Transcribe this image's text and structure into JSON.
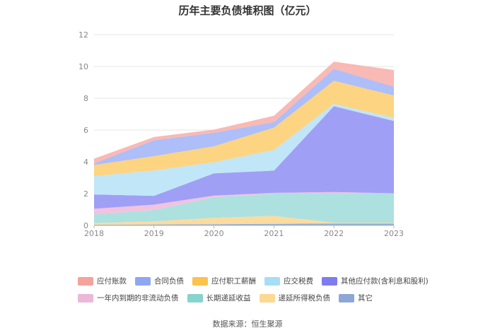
{
  "chart_data": {
    "type": "area",
    "title": "历年主要负债堆积图（亿元）",
    "x": [
      "2018",
      "2019",
      "2020",
      "2021",
      "2022",
      "2023"
    ],
    "ylim": [
      0,
      12
    ],
    "yticks": [
      "0",
      "2",
      "4",
      "6",
      "8",
      "10",
      "12"
    ],
    "grid": true,
    "legend_position": "bottom",
    "series": [
      {
        "name": "其它",
        "color": "#8aa8d8",
        "values": [
          0.05,
          0.06,
          0.08,
          0.1,
          0.12,
          0.12
        ]
      },
      {
        "name": "递延所得税负债",
        "color": "#fcd99a",
        "values": [
          0.1,
          0.2,
          0.4,
          0.5,
          0.05,
          0.05
        ]
      },
      {
        "name": "长期递延收益",
        "color": "#a8dfdd",
        "values": [
          0.55,
          0.7,
          1.3,
          1.4,
          1.83,
          1.83
        ]
      },
      {
        "name": "一年内到期的非流动负债",
        "color": "#f0c0dc",
        "values": [
          0.35,
          0.35,
          0.1,
          0.05,
          0.1,
          0.02
        ]
      },
      {
        "name": "其他应付款(含利息和股利)",
        "color": "#9b9af6",
        "values": [
          0.9,
          0.55,
          1.4,
          1.4,
          5.4,
          4.55
        ]
      },
      {
        "name": "应交税费",
        "color": "#bde5f8",
        "values": [
          1.15,
          1.6,
          0.7,
          1.3,
          0.15,
          0.2
        ]
      },
      {
        "name": "应付职工薪酬",
        "color": "#fdd27a",
        "values": [
          0.7,
          0.9,
          1.0,
          1.4,
          1.45,
          1.4
        ]
      },
      {
        "name": "合同负债",
        "color": "#a9bbf8",
        "values": [
          0.1,
          1.0,
          0.85,
          0.35,
          0.75,
          0.55
        ]
      },
      {
        "name": "应付账款",
        "color": "#f9b5b0",
        "values": [
          0.3,
          0.2,
          0.2,
          0.4,
          0.45,
          1.05
        ]
      }
    ]
  },
  "legend": {
    "row1": [
      {
        "label": "应付账款",
        "color": "#f4a39c"
      },
      {
        "label": "合同负债",
        "color": "#8fa6f2"
      },
      {
        "label": "应付职工薪酬",
        "color": "#fcc24d"
      },
      {
        "label": "应交税费",
        "color": "#a6def7"
      },
      {
        "label": "其他应付款(含利息和股利)",
        "color": "#7f7cf0"
      }
    ],
    "row2": [
      {
        "label": "一年内到期的非流动负债",
        "color": "#ebb8d8"
      },
      {
        "label": "长期递延收益",
        "color": "#86d3d0"
      },
      {
        "label": "递延所得税负债",
        "color": "#fcd891"
      },
      {
        "label": "其它",
        "color": "#8ea7d6"
      }
    ]
  },
  "source": "数据来源：恒生聚源"
}
